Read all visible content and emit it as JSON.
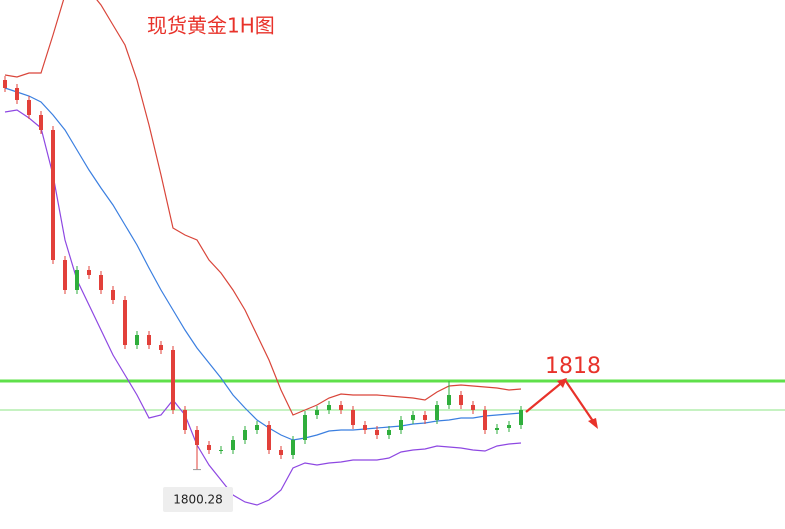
{
  "chart_data": {
    "type": "candlestick",
    "title": "现货黄金1H图",
    "ylim": [
      1788.4,
      1894.2
    ],
    "up_color": "#2fae3c",
    "down_color": "#e2403a",
    "open": [
      1878.2,
      1876.6,
      1874.2,
      1871.2,
      1868.2,
      1842.2,
      1836.2,
      1840.2,
      1839.2,
      1836.2,
      1834.2,
      1825.2,
      1827.2,
      1825.2,
      1824.2,
      1812.2,
      1808.2,
      1805.2,
      1804.2,
      1804.2,
      1806.2,
      1808.2,
      1809.2,
      1804.2,
      1803.2,
      1806.2,
      1811.2,
      1812.2,
      1813.2,
      1812.2,
      1809.2,
      1808.2,
      1807.2,
      1808.2,
      1810.2,
      1811.2,
      1810.2,
      1813.2,
      1815.2,
      1813.2,
      1812.2,
      1808.2,
      1808.6,
      1809.2
    ],
    "high": [
      1879.0,
      1877.4,
      1875.0,
      1872.0,
      1869.0,
      1843.0,
      1841.0,
      1841.0,
      1840.0,
      1837.0,
      1835.0,
      1828.0,
      1828.0,
      1826.0,
      1825.0,
      1813.0,
      1809.0,
      1806.0,
      1805.0,
      1807.0,
      1809.0,
      1810.0,
      1810.0,
      1805.0,
      1807.0,
      1812.0,
      1813.0,
      1814.0,
      1814.0,
      1813.0,
      1810.0,
      1809.0,
      1809.0,
      1811.0,
      1812.0,
      1812.0,
      1814.0,
      1818.0,
      1816.0,
      1814.0,
      1813.0,
      1809.4,
      1810.0,
      1813.0
    ],
    "low": [
      1875.8,
      1873.4,
      1870.4,
      1867.4,
      1841.4,
      1835.4,
      1835.4,
      1838.4,
      1835.4,
      1833.4,
      1824.4,
      1824.4,
      1824.4,
      1823.4,
      1811.4,
      1807.4,
      1800.28,
      1803.4,
      1803.4,
      1803.4,
      1805.4,
      1807.4,
      1803.4,
      1802.4,
      1802.4,
      1805.4,
      1810.4,
      1811.4,
      1811.4,
      1808.4,
      1807.4,
      1806.4,
      1806.4,
      1807.4,
      1809.4,
      1809.4,
      1809.4,
      1812.4,
      1812.4,
      1811.4,
      1807.4,
      1807.4,
      1807.8,
      1808.4
    ],
    "close": [
      1876.6,
      1874.2,
      1871.2,
      1868.2,
      1842.2,
      1836.2,
      1840.2,
      1839.2,
      1836.2,
      1834.2,
      1825.2,
      1827.2,
      1825.2,
      1824.2,
      1812.2,
      1808.2,
      1805.2,
      1804.2,
      1804.2,
      1806.2,
      1808.2,
      1809.2,
      1804.2,
      1803.2,
      1806.2,
      1811.2,
      1812.2,
      1813.2,
      1812.2,
      1809.2,
      1808.2,
      1807.2,
      1808.2,
      1810.2,
      1811.2,
      1810.2,
      1813.2,
      1815.2,
      1813.2,
      1812.2,
      1808.2,
      1808.6,
      1809.2,
      1812.2
    ],
    "bands": {
      "upper": {
        "color": "#d9453a",
        "values": [
          1879.2,
          1878.8,
          1879.6,
          1879.6,
          1887.2,
          1895.2,
          1897.2,
          1896.2,
          1893.2,
          1889.2,
          1885.2,
          1878.2,
          1869.2,
          1859.2,
          1848.6,
          1847.2,
          1846.2,
          1842.2,
          1839.6,
          1836.2,
          1832.2,
          1827.2,
          1822.2,
          1816.2,
          1811.2,
          1812.2,
          1813.2,
          1814.6,
          1815.4,
          1815.2,
          1815.2,
          1815.2,
          1815.0,
          1814.8,
          1814.6,
          1814.2,
          1815.8,
          1817.0,
          1817.2,
          1817.0,
          1816.8,
          1816.6,
          1816.2,
          1816.4
        ]
      },
      "middle": {
        "color": "#3b7fe0",
        "values": [
          1876.6,
          1875.8,
          1875.0,
          1873.8,
          1871.2,
          1868.2,
          1864.2,
          1860.2,
          1856.6,
          1853.2,
          1849.2,
          1845.2,
          1840.6,
          1836.2,
          1832.2,
          1828.2,
          1824.6,
          1821.6,
          1818.6,
          1815.2,
          1812.6,
          1810.2,
          1808.6,
          1807.2,
          1806.2,
          1806.6,
          1807.2,
          1808.0,
          1808.2,
          1808.2,
          1808.4,
          1808.6,
          1808.8,
          1809.0,
          1809.4,
          1809.6,
          1810.0,
          1810.2,
          1810.6,
          1810.6,
          1811.0,
          1811.2,
          1811.4,
          1811.6
        ]
      },
      "lower": {
        "color": "#8e48e2",
        "values": [
          1871.8,
          1872.2,
          1870.6,
          1868.6,
          1859.2,
          1846.2,
          1838.2,
          1833.2,
          1828.2,
          1823.2,
          1819.2,
          1815.2,
          1810.6,
          1811.2,
          1814.2,
          1811.2,
          1805.2,
          1801.2,
          1798.2,
          1795.2,
          1793.8,
          1793.2,
          1794.2,
          1796.2,
          1800.6,
          1801.6,
          1801.2,
          1801.6,
          1801.8,
          1802.2,
          1802.2,
          1802.2,
          1802.6,
          1803.8,
          1804.2,
          1804.4,
          1805.0,
          1804.8,
          1804.6,
          1804.2,
          1804.0,
          1805.0,
          1805.4,
          1805.6
        ]
      }
    },
    "target_line": {
      "value": 1818,
      "label": "1818",
      "color": "#5fe04a"
    },
    "current_price_line": {
      "value": 1812.2,
      "color": "#8ee486"
    },
    "low_marker": {
      "value": 1800.28,
      "label": "1800.28"
    }
  }
}
